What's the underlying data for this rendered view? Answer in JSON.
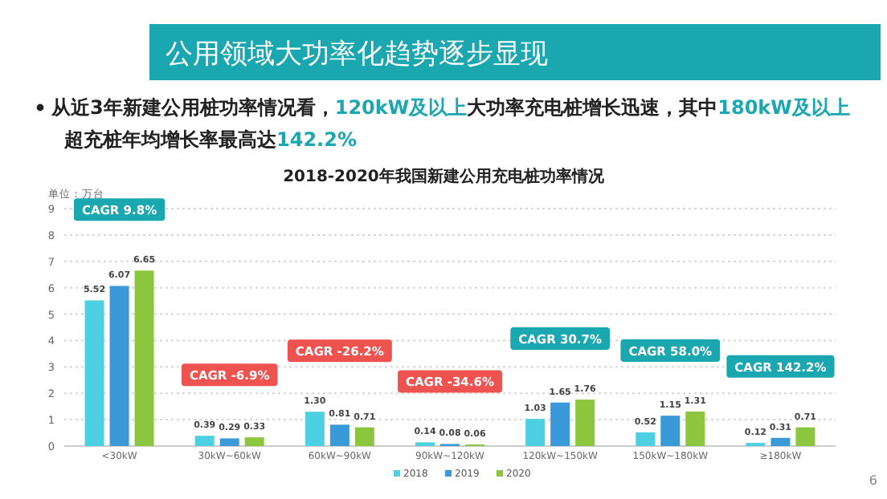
{
  "chart_data": {
    "type": "bar",
    "title": "公用领域大功率化趋势逐步显现",
    "subtitle": "2018-2020年我国新建公用充电桩功率情况",
    "ylabel": "单位：万台",
    "categories": [
      "<30kW",
      "30kW~60kW",
      "60kW~90kW",
      "90kW~120kW",
      "120kW~150kW",
      "150kW~180kW",
      "≥180kW"
    ],
    "series": [
      {
        "name": "2018",
        "color": "#4dd0e1",
        "values": [
          5.52,
          0.39,
          1.3,
          0.14,
          1.03,
          0.52,
          0.12
        ],
        "value_labels": [
          "5.52",
          "0.39",
          "1.30",
          "0.14",
          "1.03",
          "0.52",
          "0.12"
        ]
      },
      {
        "name": "2019",
        "color": "#3a9ad9",
        "values": [
          6.07,
          0.29,
          0.81,
          0.08,
          1.65,
          1.15,
          0.31
        ],
        "value_labels": [
          "6.07",
          "0.29",
          "0.81",
          "0.08",
          "1.65",
          "1.15",
          "0.31"
        ]
      },
      {
        "name": "2020",
        "color": "#8cc63f",
        "values": [
          6.65,
          0.33,
          0.71,
          0.06,
          1.76,
          1.31,
          0.71
        ],
        "value_labels": [
          "6.65",
          "0.33",
          "0.71",
          "0.06",
          "1.76",
          "1.31",
          "0.71"
        ]
      }
    ],
    "ylim": [
      0,
      9
    ],
    "yticks": [
      0,
      1,
      2,
      3,
      4,
      5,
      6,
      7,
      8,
      9
    ],
    "grid": "y",
    "legend": "bottom",
    "annotations": [
      "从近3年新建公用桩功率情况看，**120kW及以上**大功率充电桩增长迅速，其中**180kW及以上**超充桩年均增长率最高达**142.2%**",
      "CAGR 9.8%",
      "CAGR -6.9%",
      "CAGR -26.2%",
      "CAGR -34.6%",
      "CAGR 30.7%",
      "CAGR 58.0%",
      "CAGR 142.2%",
      "6"
    ]
  }
}
